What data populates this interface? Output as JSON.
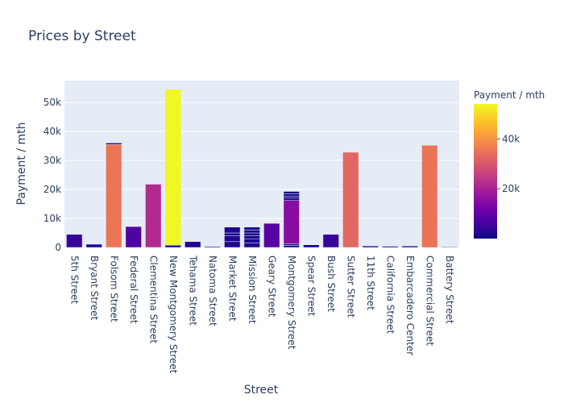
{
  "chart_data": {
    "type": "bar",
    "title": "Prices by Street",
    "xlabel": "Street",
    "ylabel": "Payment / mth",
    "ylim": [
      0,
      57500
    ],
    "yticks": [
      0,
      10000,
      20000,
      30000,
      40000,
      50000
    ],
    "ytick_labels": [
      "0",
      "10k",
      "20k",
      "30k",
      "40k",
      "50k"
    ],
    "colorbar": {
      "title": "Payment / mth",
      "range": [
        0,
        54000
      ],
      "ticks": [
        20000,
        40000
      ],
      "tick_labels": [
        "20k",
        "40k"
      ],
      "colorscale": [
        "#0d0887",
        "#46039f",
        "#7201a8",
        "#9c179e",
        "#bd3786",
        "#d8576b",
        "#ed7953",
        "#fb9f3a",
        "#fdca26",
        "#f0f921"
      ]
    },
    "grid": true,
    "background_color": "#e5ecf6",
    "categories": [
      "5th Street",
      "Bryant Street",
      "Folsom Street",
      "Federal Street",
      "Clementina Street",
      "New Montgomery Street",
      "Tehama Street",
      "Natoma Street",
      "Market Street",
      "Mission Street",
      "Geary Street",
      "Montgomery Street",
      "Spear Street",
      "Bush Street",
      "Sutter Street",
      "11th Street",
      "California Street",
      "Embarcadero Center",
      "Commercial Street",
      "Battery Street"
    ],
    "segments": [
      [
        4500
      ],
      [
        1100
      ],
      [
        35500,
        500
      ],
      [
        7200
      ],
      [
        21800
      ],
      [
        800,
        53700
      ],
      [
        2000
      ],
      [
        300
      ],
      [
        2000,
        2000,
        1000,
        2000
      ],
      [
        1500,
        1500,
        1000,
        1000,
        1000,
        1000
      ],
      [
        8300
      ],
      [
        700,
        500,
        15000,
        800,
        700,
        800,
        800
      ],
      [
        900
      ],
      [
        4500
      ],
      [
        32800
      ],
      [
        500
      ],
      [
        400
      ],
      [
        500
      ],
      [
        35200
      ],
      [
        200
      ]
    ]
  }
}
